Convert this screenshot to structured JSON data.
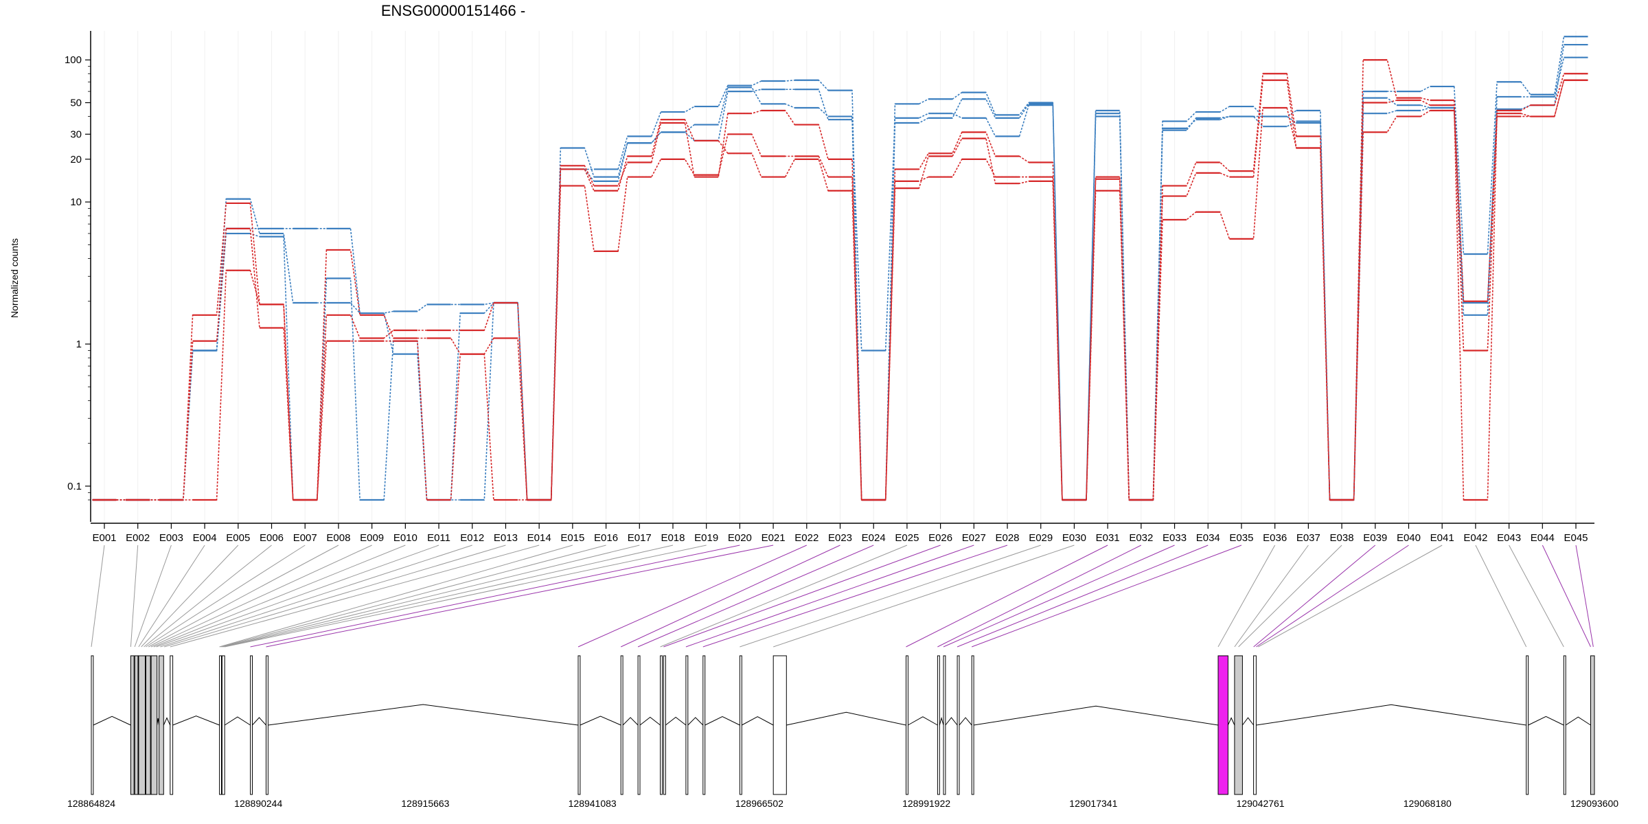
{
  "chart_data": {
    "type": "line",
    "title": "ENSG00000151466 -",
    "ylabel": "Normalized counts",
    "xlabel": "",
    "y_scale": "log",
    "ylim": [
      0.07,
      160
    ],
    "y_ticks": [
      {
        "value": 0.1,
        "label": "0.1"
      },
      {
        "value": 1,
        "label": "1"
      },
      {
        "value": 10,
        "label": "10"
      },
      {
        "value": 20,
        "label": "20"
      },
      {
        "value": 30,
        "label": "30"
      },
      {
        "value": 50,
        "label": "50"
      },
      {
        "value": 100,
        "label": "100"
      }
    ],
    "categories": [
      "E001",
      "E002",
      "E003",
      "E004",
      "E005",
      "E006",
      "E007",
      "E008",
      "E009",
      "E010",
      "E011",
      "E012",
      "E013",
      "E014",
      "E015",
      "E016",
      "E017",
      "E018",
      "E019",
      "E020",
      "E021",
      "E022",
      "E023",
      "E024",
      "E025",
      "E026",
      "E027",
      "E028",
      "E029",
      "E030",
      "E031",
      "E032",
      "E033",
      "E034",
      "E035",
      "E036",
      "E037",
      "E038",
      "E039",
      "E040",
      "E041",
      "E042",
      "E043",
      "E044",
      "E045"
    ],
    "legend_placement": "top",
    "colors": {
      "red": "#d62728",
      "blue": "#3a7ebf",
      "highlight": "#ee22ee",
      "nonsig_box": "#cccccc",
      "sig_connector": "#9933aa",
      "connector": "#999999"
    },
    "series": [
      {
        "group": "red",
        "values": [
          0.08,
          0.08,
          0.08,
          1.6,
          9.8,
          1.9,
          0.08,
          4.6,
          1.6,
          1.1,
          1.1,
          0.85,
          1.1,
          0.08,
          18,
          13,
          19,
          36,
          15,
          42,
          44,
          35,
          20,
          0.08,
          17,
          22,
          31,
          21,
          19,
          0.08,
          15,
          0.08,
          13,
          19,
          16.5,
          80,
          29,
          0.08,
          100,
          54,
          52,
          2,
          44,
          48,
          80
        ]
      },
      {
        "group": "red",
        "values": [
          0.08,
          0.08,
          0.08,
          1.05,
          6.5,
          1.3,
          0.08,
          1.6,
          1.1,
          1.25,
          1.25,
          1.25,
          1.95,
          0.08,
          13,
          4.5,
          15,
          20,
          15.5,
          30,
          21,
          21,
          15,
          0.08,
          14,
          15,
          20,
          15,
          15,
          0.08,
          14.5,
          0.08,
          11,
          16,
          15,
          72,
          24,
          0.08,
          50,
          52,
          48,
          0.08,
          42,
          40,
          72
        ]
      },
      {
        "group": "red",
        "values": [
          0.08,
          0.08,
          0.08,
          0.08,
          3.3,
          1.9,
          0.08,
          1.05,
          1.05,
          1.05,
          0.08,
          0.85,
          0.08,
          0.08,
          17,
          12,
          21,
          38,
          27,
          22,
          15,
          20,
          12,
          0.08,
          12.5,
          21,
          28,
          13.5,
          14,
          0.08,
          12,
          0.08,
          7.5,
          8.5,
          5.5,
          46,
          24,
          0.08,
          31,
          40,
          44,
          0.9,
          40,
          40,
          72
        ]
      },
      {
        "group": "blue",
        "values": [
          0.08,
          0.08,
          0.08,
          0.9,
          10.5,
          6,
          1.95,
          1.95,
          1.65,
          0.85,
          0.08,
          1.65,
          1.95,
          0.08,
          24,
          15,
          26,
          31,
          27,
          60,
          62,
          62,
          38,
          0.9,
          39,
          42,
          39,
          29,
          48,
          0.08,
          40,
          0.08,
          33,
          38,
          40,
          34,
          37,
          0.08,
          54,
          48,
          46,
          1.95,
          45,
          48,
          128
        ]
      },
      {
        "group": "blue",
        "values": [
          0.08,
          0.08,
          0.08,
          0.9,
          6.5,
          6.5,
          6.5,
          6.5,
          1.65,
          1.7,
          1.9,
          1.9,
          1.95,
          0.08,
          17,
          17,
          29,
          43,
          47,
          66,
          71,
          72,
          61,
          0.08,
          49,
          53,
          59,
          41,
          50,
          0.08,
          42,
          0.08,
          37,
          43,
          47,
          40,
          44,
          0.08,
          60,
          60,
          65,
          4.3,
          70,
          57,
          146
        ]
      },
      {
        "group": "blue",
        "values": [
          0.08,
          0.08,
          0.08,
          0.9,
          6,
          5.7,
          0.08,
          2.9,
          0.08,
          1.05,
          0.08,
          0.08,
          1.95,
          0.08,
          17,
          14,
          26,
          31,
          35,
          64,
          49,
          46,
          40,
          0.08,
          36,
          39,
          53,
          39,
          49,
          0.08,
          44,
          0.08,
          32,
          39,
          40,
          40,
          36,
          0.08,
          42,
          44,
          46,
          1.6,
          55,
          55,
          104
        ]
      }
    ],
    "gene_model": {
      "coordinate_labels": [
        "128864824",
        "128890244",
        "128915663",
        "128941083",
        "128966502",
        "128991922",
        "129017341",
        "129042761",
        "129068180",
        "129093600"
      ],
      "xlim": [
        128864824,
        129093600
      ],
      "significant_exons": [
        "E020",
        "E021",
        "E022",
        "E023",
        "E024",
        "E026",
        "E027",
        "E028",
        "E031",
        "E032",
        "E033",
        "E034",
        "E035",
        "E039",
        "E040",
        "E044",
        "E045"
      ],
      "exons": [
        {
          "start": 128864824,
          "end": 128865124,
          "fill": "white"
        },
        {
          "start": 128870824,
          "end": 128871324,
          "fill": "#cccccc"
        },
        {
          "start": 128871424,
          "end": 128871924,
          "fill": "#cccccc"
        },
        {
          "start": 128872024,
          "end": 128873024,
          "fill": "#cccccc"
        },
        {
          "start": 128873124,
          "end": 128873824,
          "fill": "#cccccc"
        },
        {
          "start": 128873924,
          "end": 128874824,
          "fill": "#cccccc"
        },
        {
          "start": 128875124,
          "end": 128875824,
          "fill": "#cccccc"
        },
        {
          "start": 128876824,
          "end": 128877224,
          "fill": "white"
        },
        {
          "start": 128884324,
          "end": 128884624,
          "fill": "white"
        },
        {
          "start": 128884724,
          "end": 128885124,
          "fill": "white"
        },
        {
          "start": 128889024,
          "end": 128889324,
          "fill": "white"
        },
        {
          "start": 128891424,
          "end": 128891724,
          "fill": "white"
        },
        {
          "start": 128938924,
          "end": 128939224,
          "fill": "white"
        },
        {
          "start": 128945424,
          "end": 128945724,
          "fill": "white"
        },
        {
          "start": 128948024,
          "end": 128948324,
          "fill": "white"
        },
        {
          "start": 128951424,
          "end": 128951724,
          "fill": "white"
        },
        {
          "start": 128951924,
          "end": 128952224,
          "fill": "white"
        },
        {
          "start": 128955324,
          "end": 128955624,
          "fill": "white"
        },
        {
          "start": 128957924,
          "end": 128958224,
          "fill": "white"
        },
        {
          "start": 128963524,
          "end": 128963824,
          "fill": "white"
        },
        {
          "start": 128968624,
          "end": 128970624,
          "fill": "white"
        },
        {
          "start": 128988824,
          "end": 128989124,
          "fill": "white"
        },
        {
          "start": 128993624,
          "end": 128993924,
          "fill": "white"
        },
        {
          "start": 128994524,
          "end": 128994824,
          "fill": "white"
        },
        {
          "start": 128996624,
          "end": 128996924,
          "fill": "white"
        },
        {
          "start": 128998824,
          "end": 128999124,
          "fill": "white"
        },
        {
          "start": 129036324,
          "end": 129037824,
          "fill": "#ee22ee"
        },
        {
          "start": 129038824,
          "end": 129040024,
          "fill": "#cccccc"
        },
        {
          "start": 129041724,
          "end": 129042124,
          "fill": "white"
        },
        {
          "start": 129083224,
          "end": 129083524,
          "fill": "white"
        },
        {
          "start": 129088924,
          "end": 129089224,
          "fill": "white"
        },
        {
          "start": 129093024,
          "end": 129093600,
          "fill": "#cccccc"
        }
      ],
      "exon_anchor_positions": [
        128864824,
        128870824,
        128871424,
        128872024,
        128872424,
        128872824,
        128873124,
        128873524,
        128873924,
        128874324,
        128874724,
        128875324,
        128875924,
        128876824,
        128884324,
        128884524,
        128884724,
        128884924,
        128885124,
        128889024,
        128891424,
        128938924,
        128945424,
        128948024,
        128951424,
        128951924,
        128955324,
        128957924,
        128963524,
        128968624,
        128988824,
        128993624,
        128994524,
        128996624,
        128998824,
        129036324,
        129038824,
        129039424,
        129041724,
        129042124,
        129042424,
        129083224,
        129088924,
        129093024,
        129093424
      ]
    }
  }
}
